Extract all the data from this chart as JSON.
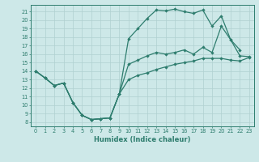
{
  "xlabel": "Humidex (Indice chaleur)",
  "bg_color": "#cde8e8",
  "grid_color": "#b0d0d0",
  "line_color": "#2e7d6e",
  "xlim": [
    -0.5,
    23.5
  ],
  "ylim": [
    7.5,
    21.8
  ],
  "xticks": [
    0,
    1,
    2,
    3,
    4,
    5,
    6,
    7,
    8,
    9,
    10,
    11,
    12,
    13,
    14,
    15,
    16,
    17,
    18,
    19,
    20,
    21,
    22,
    23
  ],
  "yticks": [
    8,
    9,
    10,
    11,
    12,
    13,
    14,
    15,
    16,
    17,
    18,
    19,
    20,
    21
  ],
  "line_peak_x": [
    0,
    1,
    2,
    3,
    4,
    5,
    6,
    7,
    8,
    9,
    10,
    11,
    12,
    13,
    14,
    15,
    16,
    17,
    18,
    19,
    20,
    21,
    22
  ],
  "line_peak_y": [
    14.0,
    13.2,
    12.3,
    12.6,
    10.3,
    8.8,
    8.3,
    8.4,
    8.5,
    11.3,
    17.8,
    19.0,
    20.2,
    21.2,
    21.1,
    21.3,
    21.0,
    20.8,
    21.2,
    19.3,
    20.5,
    17.7,
    16.5
  ],
  "line_mid_x": [
    0,
    1,
    2,
    3,
    4,
    5,
    6,
    7,
    8,
    9,
    10,
    11,
    12,
    13,
    14,
    15,
    16,
    17,
    18,
    19,
    20,
    21,
    22,
    23
  ],
  "line_mid_y": [
    14.0,
    13.2,
    12.3,
    12.6,
    10.3,
    8.8,
    8.3,
    8.4,
    8.5,
    11.3,
    14.8,
    15.3,
    15.8,
    16.2,
    16.0,
    16.2,
    16.5,
    16.0,
    16.8,
    16.2,
    19.3,
    17.7,
    15.8,
    15.7
  ],
  "line_avg_x": [
    0,
    1,
    2,
    3,
    4,
    5,
    6,
    7,
    8,
    9,
    10,
    11,
    12,
    13,
    14,
    15,
    16,
    17,
    18,
    19,
    20,
    21,
    22,
    23
  ],
  "line_avg_y": [
    14.0,
    13.2,
    12.3,
    12.6,
    10.3,
    8.8,
    8.3,
    8.4,
    8.5,
    11.3,
    13.0,
    13.5,
    13.8,
    14.2,
    14.5,
    14.8,
    15.0,
    15.2,
    15.5,
    15.5,
    15.5,
    15.3,
    15.2,
    15.6
  ]
}
